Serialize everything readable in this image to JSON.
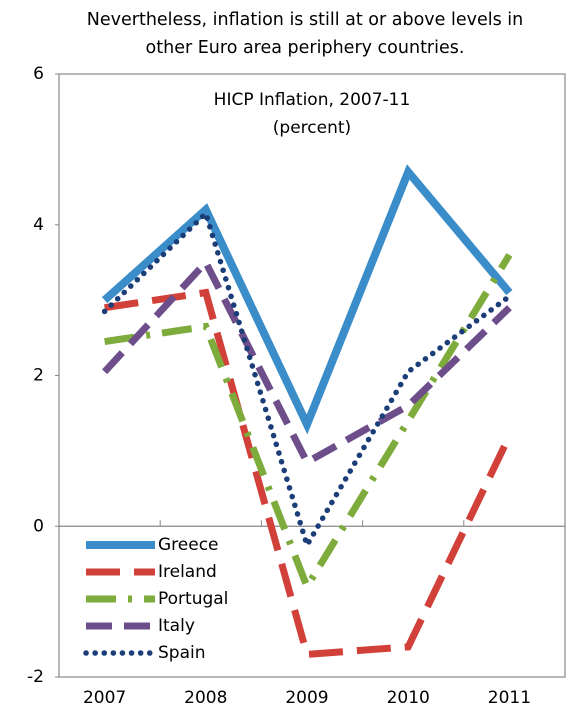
{
  "chart_data": {
    "type": "line",
    "title": [
      "Nevertheless, inflation  is still at or above levels in",
      "other Euro area periphery countries."
    ],
    "subtitle": [
      "HICP Inflation,  2007-11",
      "(percent)"
    ],
    "categories": [
      "2007",
      "2008",
      "2009",
      "2010",
      "2011"
    ],
    "series": [
      {
        "name": "Greece",
        "color": "#3a8dc9",
        "style": "solid",
        "values": [
          3.0,
          4.2,
          1.35,
          4.7,
          3.1
        ]
      },
      {
        "name": "Ireland",
        "color": "#d2403a",
        "style": "dashed",
        "values": [
          2.9,
          3.1,
          -1.7,
          -1.6,
          1.2
        ]
      },
      {
        "name": "Portugal",
        "color": "#7dab3c",
        "style": "dashdot",
        "values": [
          2.45,
          2.65,
          -0.8,
          1.4,
          3.6
        ]
      },
      {
        "name": "Italy",
        "color": "#6e4d8b",
        "style": "longdash",
        "values": [
          2.05,
          3.5,
          0.85,
          1.6,
          2.9
        ]
      },
      {
        "name": "Spain",
        "color": "#1b3d78",
        "style": "dotted",
        "values": [
          2.85,
          4.15,
          -0.25,
          2.05,
          3.05
        ]
      }
    ],
    "ylim": [
      -2,
      6
    ],
    "yticks": [
      -2,
      0,
      2,
      4,
      6
    ],
    "legend": "lower left"
  }
}
